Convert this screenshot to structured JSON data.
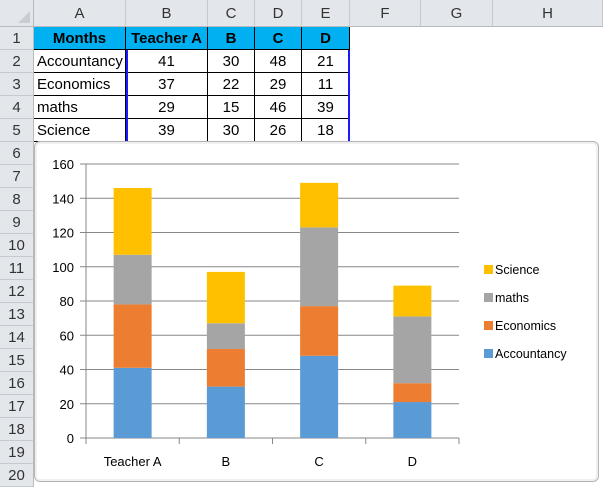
{
  "spreadsheet": {
    "columns": [
      "A",
      "B",
      "C",
      "D",
      "E",
      "F",
      "G",
      "H"
    ],
    "rows": [
      "1",
      "2",
      "3",
      "4",
      "5",
      "6",
      "7",
      "8",
      "9",
      "10",
      "11",
      "12",
      "13",
      "14",
      "15",
      "16",
      "17",
      "18",
      "19",
      "20"
    ],
    "header": [
      "Months",
      "Teacher A",
      "B",
      "C",
      "D"
    ],
    "data": [
      [
        "Accountancy",
        "41",
        "30",
        "48",
        "21"
      ],
      [
        "Economics",
        "37",
        "22",
        "29",
        "11"
      ],
      [
        "maths",
        "29",
        "15",
        "46",
        "39"
      ],
      [
        "Science",
        "39",
        "30",
        "26",
        "18"
      ]
    ],
    "header_fill": "#00b0f0"
  },
  "chart_data": {
    "type": "bar",
    "stacked": true,
    "title": "",
    "xlabel": "",
    "ylabel": "",
    "categories": [
      "Teacher A",
      "B",
      "C",
      "D"
    ],
    "series": [
      {
        "name": "Accountancy",
        "color": "#5b9bd5",
        "values": [
          41,
          30,
          48,
          21
        ]
      },
      {
        "name": "Economics",
        "color": "#ed7d31",
        "values": [
          37,
          22,
          29,
          11
        ]
      },
      {
        "name": "maths",
        "color": "#a5a5a5",
        "values": [
          29,
          15,
          46,
          39
        ]
      },
      {
        "name": "Science",
        "color": "#ffc000",
        "values": [
          39,
          30,
          26,
          18
        ]
      }
    ],
    "ylim": [
      0,
      160
    ],
    "yticks": [
      0,
      20,
      40,
      60,
      80,
      100,
      120,
      140,
      160
    ],
    "grid": true,
    "legend_position": "right",
    "legend_order": [
      "Science",
      "maths",
      "Economics",
      "Accountancy"
    ]
  }
}
